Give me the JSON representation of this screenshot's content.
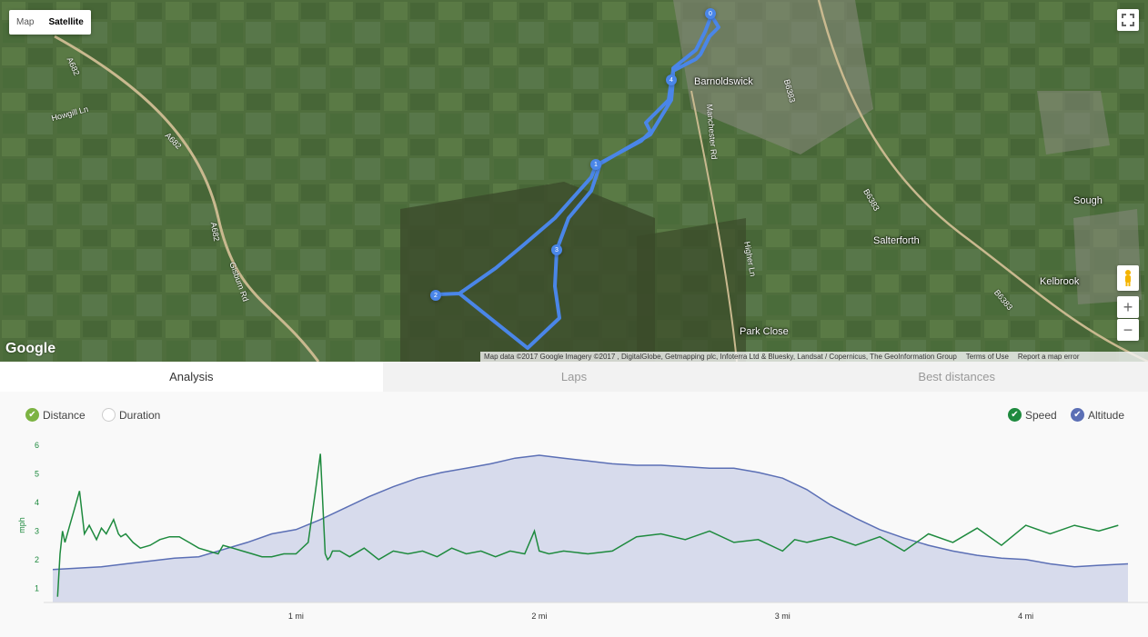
{
  "map": {
    "type_control": {
      "map_label": "Map",
      "satellite_label": "Satellite",
      "selected": "Satellite"
    },
    "fullscreen_icon": "fullscreen-icon",
    "pegman_icon": "pegman-icon",
    "zoom_in_label": "+",
    "zoom_out_label": "−",
    "logo_text": "Google",
    "attribution": {
      "data_text": "Map data ©2017 Google Imagery ©2017 , DigitalGlobe, Getmapping plc, Infoterra Ltd & Bluesky, Landsat / Copernicus, The GeoInformation Group",
      "terms": "Terms of Use",
      "report": "Report a map error"
    },
    "places": [
      "Barnoldswick",
      "Salterforth",
      "Kelbrook",
      "Sough",
      "Park Close"
    ],
    "roads": [
      "A682",
      "Howgill Ln",
      "A682",
      "A682",
      "Gisburn Rd",
      "B6383",
      "Manchester Rd",
      "Higher Ln",
      "B6383",
      "B6383"
    ],
    "route_color": "#4a86e8",
    "lap_markers": [
      "0",
      "4",
      "1",
      "3",
      "2"
    ]
  },
  "tabs": [
    {
      "label": "Analysis",
      "active": true
    },
    {
      "label": "Laps",
      "active": false
    },
    {
      "label": "Best distances",
      "active": false
    }
  ],
  "toggles": {
    "distance": {
      "label": "Distance",
      "checked": true,
      "color": "#7cb342"
    },
    "duration": {
      "label": "Duration",
      "checked": false
    },
    "speed": {
      "label": "Speed",
      "checked": true,
      "color": "#1e8a3e"
    },
    "altitude": {
      "label": "Altitude",
      "checked": true,
      "color": "#5b6fb5"
    }
  },
  "chart_data": {
    "type": "line",
    "xlabel": "",
    "ylabel": "mph",
    "x_ticks": [
      "1 mi",
      "2 mi",
      "3 mi",
      "4 mi"
    ],
    "xlim": [
      0,
      4.42
    ],
    "ylim": [
      0.5,
      6
    ],
    "y_ticks": [
      1,
      2,
      3,
      4,
      5,
      6
    ],
    "grid": false,
    "series": [
      {
        "name": "Speed",
        "color": "#1e8a3e",
        "x": [
          0.02,
          0.03,
          0.04,
          0.05,
          0.07,
          0.09,
          0.11,
          0.13,
          0.15,
          0.18,
          0.2,
          0.22,
          0.25,
          0.27,
          0.28,
          0.3,
          0.33,
          0.36,
          0.4,
          0.44,
          0.48,
          0.52,
          0.56,
          0.6,
          0.64,
          0.68,
          0.7,
          0.74,
          0.78,
          0.82,
          0.86,
          0.9,
          0.95,
          1.0,
          1.05,
          1.08,
          1.1,
          1.12,
          1.13,
          1.14,
          1.15,
          1.18,
          1.22,
          1.28,
          1.34,
          1.4,
          1.46,
          1.52,
          1.58,
          1.64,
          1.7,
          1.76,
          1.82,
          1.88,
          1.94,
          1.98,
          2.0,
          2.04,
          2.1,
          2.2,
          2.3,
          2.4,
          2.5,
          2.6,
          2.7,
          2.8,
          2.9,
          3.0,
          3.05,
          3.1,
          3.2,
          3.3,
          3.4,
          3.5,
          3.6,
          3.7,
          3.8,
          3.9,
          4.0,
          4.1,
          4.2,
          4.3,
          4.38
        ],
        "values": [
          0.7,
          2.2,
          3.0,
          2.6,
          3.2,
          3.8,
          4.4,
          2.9,
          3.2,
          2.7,
          3.1,
          2.9,
          3.4,
          2.9,
          2.8,
          2.9,
          2.6,
          2.4,
          2.5,
          2.7,
          2.8,
          2.8,
          2.6,
          2.4,
          2.3,
          2.2,
          2.5,
          2.4,
          2.3,
          2.2,
          2.1,
          2.1,
          2.2,
          2.2,
          2.6,
          4.4,
          5.7,
          2.2,
          2.0,
          2.1,
          2.3,
          2.3,
          2.1,
          2.4,
          2.0,
          2.3,
          2.2,
          2.3,
          2.1,
          2.4,
          2.2,
          2.3,
          2.1,
          2.3,
          2.2,
          3.0,
          2.3,
          2.2,
          2.3,
          2.2,
          2.3,
          2.8,
          2.9,
          2.7,
          3.0,
          2.6,
          2.7,
          2.3,
          2.7,
          2.6,
          2.8,
          2.5,
          2.8,
          2.3,
          2.9,
          2.6,
          3.1,
          2.5,
          3.2,
          2.9,
          3.2,
          3.0,
          3.2
        ]
      },
      {
        "name": "Altitude",
        "color": "#5b6fb5",
        "x": [
          0,
          0.1,
          0.2,
          0.3,
          0.4,
          0.5,
          0.6,
          0.7,
          0.8,
          0.9,
          1.0,
          1.1,
          1.2,
          1.3,
          1.4,
          1.5,
          1.6,
          1.7,
          1.8,
          1.9,
          2.0,
          2.1,
          2.2,
          2.3,
          2.4,
          2.5,
          2.6,
          2.7,
          2.8,
          2.9,
          3.0,
          3.1,
          3.2,
          3.3,
          3.4,
          3.5,
          3.6,
          3.7,
          3.8,
          3.9,
          4.0,
          4.1,
          4.2,
          4.3,
          4.42
        ],
        "values": [
          1.65,
          1.7,
          1.75,
          1.85,
          1.95,
          2.05,
          2.1,
          2.35,
          2.6,
          2.9,
          3.05,
          3.4,
          3.8,
          4.2,
          4.55,
          4.85,
          5.05,
          5.2,
          5.35,
          5.55,
          5.65,
          5.55,
          5.45,
          5.35,
          5.3,
          5.3,
          5.25,
          5.2,
          5.2,
          5.05,
          4.85,
          4.45,
          3.9,
          3.45,
          3.05,
          2.75,
          2.5,
          2.3,
          2.15,
          2.05,
          2.0,
          1.85,
          1.75,
          1.8,
          1.85
        ]
      }
    ]
  }
}
